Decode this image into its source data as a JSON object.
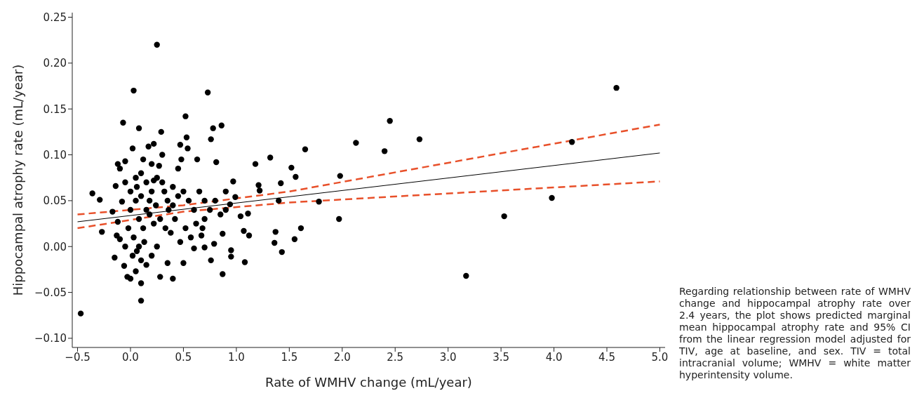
{
  "chart_data": {
    "type": "scatter",
    "xlabel": "Rate of WMHV change (mL/year)",
    "ylabel": "Hippocampal atrophy rate (mL/year)",
    "annotations": [
      "Regarding relationship between rate of WMHV change and hippocampal atrophy rate over 2.4 years, the plot shows predicted marginal mean hippocampal atrophy rate and 95% CI from the linear regression model adjusted for TIV, age at baseline, and sex. TIV = total intracranial volume; WMHV = white matter hyperintensity volume."
    ],
    "xlim": [
      -0.55,
      5.05
    ],
    "ylim": [
      -0.11,
      0.255
    ],
    "xticks": [
      {
        "value": -0.5,
        "label": "−0.5"
      },
      {
        "value": 0,
        "label": "0.0"
      },
      {
        "value": 0.5,
        "label": "0.5"
      },
      {
        "value": 1,
        "label": "1.0"
      },
      {
        "value": 1.5,
        "label": "1.5"
      },
      {
        "value": 2,
        "label": "2.0"
      },
      {
        "value": 2.5,
        "label": "2.5"
      },
      {
        "value": 3,
        "label": "3.0"
      },
      {
        "value": 3.5,
        "label": "3.5"
      },
      {
        "value": 4,
        "label": "4.0"
      },
      {
        "value": 4.5,
        "label": "4.5"
      },
      {
        "value": 5,
        "label": "5.0"
      }
    ],
    "yticks": [
      {
        "value": -0.1,
        "label": "−0.10"
      },
      {
        "value": -0.05,
        "label": "−0.05"
      },
      {
        "value": 0,
        "label": "0.00"
      },
      {
        "value": 0.05,
        "label": "0.05"
      },
      {
        "value": 0.1,
        "label": "0.10"
      },
      {
        "value": 0.15,
        "label": "0.15"
      },
      {
        "value": 0.2,
        "label": "0.20"
      },
      {
        "value": 0.25,
        "label": "0.25"
      }
    ],
    "grid": false,
    "legend": false,
    "series": [
      {
        "marker": "circle",
        "color": "#000000",
        "x": [
          0.25,
          0.03,
          0.73,
          -0.07,
          0.08,
          0.29,
          0.52,
          0.78,
          0.86,
          0.76,
          0.53,
          -0.05,
          0.02,
          0.17,
          0.22,
          0.47,
          0.54,
          0.63,
          0.81,
          0.97,
          1.18,
          1.32,
          1.52,
          1.65,
          2.13,
          2.45,
          2.4,
          2.73,
          4.59,
          4.17,
          3.98,
          3.53,
          3.17,
          1.98,
          1.97,
          1.78,
          1.42,
          1.56,
          1.4,
          1.55,
          1.61,
          1.37,
          1.43,
          1.36,
          1.21,
          1.22,
          1.11,
          1.07,
          1.08,
          1.12,
          1.04,
          0.99,
          0.94,
          0.95,
          0.95,
          0.87,
          0.87,
          0.9,
          0.79,
          0.76,
          0.67,
          0.7,
          0.7,
          0.6,
          0.5,
          0.4,
          0.35,
          0.28,
          0.1,
          -0.47,
          -0.36,
          -0.29,
          -0.27,
          -0.17,
          -0.15,
          -0.13,
          -0.12,
          -0.1,
          -0.08,
          -0.06,
          -0.03,
          0.0,
          0.05,
          0.1,
          0.15,
          0.2,
          0.25,
          -0.05,
          -0.1,
          -0.14,
          -0.12,
          0.0,
          0.05,
          0.1,
          0.15,
          0.2,
          0.25,
          0.3,
          0.35,
          0.4,
          0.45,
          0.5,
          0.55,
          0.6,
          0.65,
          0.7,
          0.75,
          0.8,
          0.85,
          0.9,
          0.45,
          0.48,
          0.3,
          0.27,
          0.12,
          0.05,
          0.0,
          -0.02,
          0.03,
          0.08,
          0.12,
          0.15,
          0.18,
          0.22,
          0.28,
          0.33,
          0.38,
          0.42,
          0.47,
          0.52,
          0.57,
          0.62,
          0.68,
          0.08,
          0.1,
          0.06,
          0.13,
          0.02,
          -0.05,
          0.18,
          0.24,
          0.36,
          0.06,
          0.1,
          0.2,
          0.22,
          0.32,
          0.4
        ],
        "values": [
          0.22,
          0.17,
          0.168,
          0.135,
          0.129,
          0.125,
          0.142,
          0.129,
          0.132,
          0.117,
          0.119,
          0.093,
          0.107,
          0.109,
          0.112,
          0.111,
          0.107,
          0.095,
          0.092,
          0.071,
          0.09,
          0.097,
          0.086,
          0.106,
          0.113,
          0.137,
          0.104,
          0.117,
          0.173,
          0.114,
          0.053,
          0.033,
          -0.032,
          0.077,
          0.03,
          0.049,
          0.069,
          0.076,
          0.05,
          0.008,
          0.02,
          0.016,
          -0.006,
          0.004,
          0.067,
          0.061,
          0.036,
          0.017,
          -0.017,
          0.012,
          0.033,
          0.054,
          0.046,
          -0.004,
          -0.011,
          -0.03,
          0.014,
          0.06,
          0.003,
          -0.015,
          0.012,
          -0.001,
          0.03,
          -0.002,
          -0.018,
          -0.035,
          -0.018,
          -0.033,
          -0.059,
          -0.073,
          0.058,
          0.051,
          0.016,
          0.038,
          -0.012,
          0.012,
          0.027,
          0.008,
          0.049,
          -0.021,
          -0.033,
          -0.035,
          -0.027,
          -0.04,
          -0.02,
          -0.01,
          0.0,
          0.07,
          0.085,
          0.066,
          0.09,
          0.06,
          0.075,
          0.08,
          0.07,
          0.06,
          0.075,
          0.07,
          0.05,
          0.045,
          0.055,
          0.06,
          0.05,
          0.04,
          0.06,
          0.05,
          0.04,
          0.05,
          0.035,
          0.04,
          0.085,
          0.095,
          0.1,
          0.088,
          0.095,
          0.05,
          0.04,
          0.02,
          0.01,
          0.03,
          0.02,
          0.04,
          0.035,
          0.025,
          0.03,
          0.02,
          0.015,
          0.03,
          0.005,
          0.02,
          0.01,
          0.025,
          0.02,
          0.0,
          -0.015,
          -0.005,
          0.005,
          -0.01,
          0.0,
          0.05,
          0.045,
          0.04,
          0.065,
          0.055,
          0.09,
          0.072,
          0.06,
          0.065
        ]
      },
      {
        "type": "line",
        "marker": "none",
        "color": "#000000",
        "line_style": "solid",
        "x": [
          -0.5,
          5.0
        ],
        "values": [
          0.027,
          0.102
        ]
      },
      {
        "type": "line",
        "color": "#e8502a",
        "line_style": "dashed",
        "x": [
          -0.5,
          0.5,
          1.5,
          5.0
        ],
        "marker": "none",
        "values": [
          0.02,
          0.038,
          0.048,
          0.071
        ]
      },
      {
        "type": "line",
        "color": "#e8502a",
        "line_style": "dashed",
        "x": [
          -0.5,
          0.5,
          1.5,
          5.0
        ],
        "marker": "none",
        "values": [
          0.035,
          0.045,
          0.06,
          0.133
        ]
      }
    ]
  }
}
